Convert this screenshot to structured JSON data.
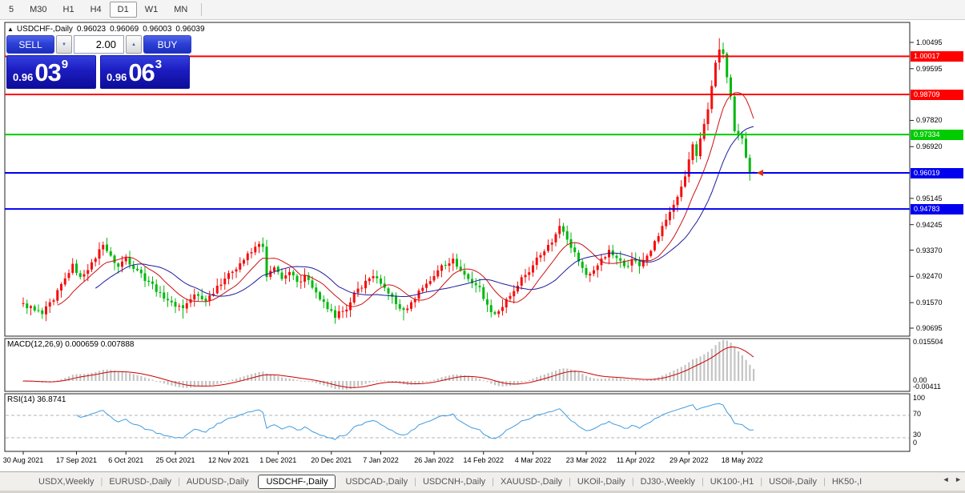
{
  "toolbar": {
    "timeframes": [
      {
        "label": "5",
        "active": false
      },
      {
        "label": "M30",
        "active": false
      },
      {
        "label": "H1",
        "active": false
      },
      {
        "label": "H4",
        "active": false
      },
      {
        "label": "D1",
        "active": true
      },
      {
        "label": "W1",
        "active": false
      },
      {
        "label": "MN",
        "active": false
      }
    ]
  },
  "chart": {
    "collapse_arrow": "▲",
    "symbol": "USDCHF-,Daily",
    "open": "0.96023",
    "high": "0.96069",
    "low": "0.96003",
    "close": "0.96039",
    "trade": {
      "sell_label": "SELL",
      "buy_label": "BUY",
      "volume": "2.00",
      "spin_down": "▼",
      "spin_up": "▲",
      "sell_small": "0.96",
      "sell_big": "03",
      "sell_sup": "9",
      "buy_small": "0.96",
      "buy_big": "06",
      "buy_sup": "3"
    }
  },
  "macd": {
    "label": "MACD(12,26,9) 0.000659 0.007888",
    "axis": [
      "0.015504",
      "0.00",
      "-0.00411"
    ]
  },
  "rsi": {
    "label": "RSI(14) 36.8741",
    "axis": [
      "100",
      "70",
      "30",
      "0"
    ]
  },
  "tabs": {
    "items": [
      {
        "label": "USDX,Weekly",
        "active": false
      },
      {
        "label": "EURUSD-,Daily",
        "active": false
      },
      {
        "label": "AUDUSD-,Daily",
        "active": false
      },
      {
        "label": "USDCHF-,Daily",
        "active": true
      },
      {
        "label": "USDCAD-,Daily",
        "active": false
      },
      {
        "label": "USDCNH-,Daily",
        "active": false
      },
      {
        "label": "XAUUSD-,Daily",
        "active": false
      },
      {
        "label": "UKOil-,Daily",
        "active": false
      },
      {
        "label": "DJ30-,Weekly",
        "active": false
      },
      {
        "label": "UK100-,H1",
        "active": false
      },
      {
        "label": "USOil-,Daily",
        "active": false
      },
      {
        "label": "HK50-,I",
        "active": false
      }
    ],
    "scroll_left": "◄",
    "scroll_right": "►"
  },
  "chart_data": {
    "type": "candlestick",
    "symbol": "USDCHF",
    "timeframe": "Daily",
    "bars": 193,
    "bull_color": "#f60e0e",
    "bear_color": "#00b80e",
    "current_ohlc": {
      "open": 0.96023,
      "high": 0.96069,
      "low": 0.96003,
      "close": 0.96039
    },
    "y_axis_ticks": [
      "1.00495",
      "0.99595",
      "0.97820",
      "0.96920",
      "0.95145",
      "0.94245",
      "0.93370",
      "0.92470",
      "0.91570",
      "0.90695"
    ],
    "horizontal_lines": [
      {
        "price": "1.00017",
        "color": "#ff0000"
      },
      {
        "price": "0.98709",
        "color": "#ff0000"
      },
      {
        "price": "0.97334",
        "color": "#00cc00"
      },
      {
        "price": "0.96019",
        "color": "#0000ee"
      },
      {
        "price": "0.94783",
        "color": "#0000ee"
      }
    ],
    "date_ticks": [
      {
        "label": "30 Aug 2021",
        "idx": 0
      },
      {
        "label": "17 Sep 2021",
        "idx": 14
      },
      {
        "label": "6 Oct 2021",
        "idx": 27
      },
      {
        "label": "25 Oct 2021",
        "idx": 40
      },
      {
        "label": "12 Nov 2021",
        "idx": 54
      },
      {
        "label": "1 Dec 2021",
        "idx": 67
      },
      {
        "label": "20 Dec 2021",
        "idx": 81
      },
      {
        "label": "7 Jan 2022",
        "idx": 94
      },
      {
        "label": "26 Jan 2022",
        "idx": 108
      },
      {
        "label": "14 Feb 2022",
        "idx": 121
      },
      {
        "label": "4 Mar 2022",
        "idx": 134
      },
      {
        "label": "23 Mar 2022",
        "idx": 148
      },
      {
        "label": "11 Apr 2022",
        "idx": 161
      },
      {
        "label": "29 Apr 2022",
        "idx": 175
      },
      {
        "label": "18 May 2022",
        "idx": 189
      }
    ],
    "close_anchors": [
      [
        0,
        0.9155
      ],
      [
        3,
        0.913
      ],
      [
        5,
        0.9118
      ],
      [
        8,
        0.9165
      ],
      [
        11,
        0.924
      ],
      [
        13,
        0.929
      ],
      [
        15,
        0.9245
      ],
      [
        18,
        0.9295
      ],
      [
        21,
        0.9355
      ],
      [
        23,
        0.9318
      ],
      [
        25,
        0.928
      ],
      [
        27,
        0.9312
      ],
      [
        30,
        0.9268
      ],
      [
        33,
        0.9228
      ],
      [
        36,
        0.9192
      ],
      [
        39,
        0.9158
      ],
      [
        42,
        0.9138
      ],
      [
        45,
        0.9185
      ],
      [
        48,
        0.9162
      ],
      [
        51,
        0.9215
      ],
      [
        54,
        0.9258
      ],
      [
        57,
        0.9292
      ],
      [
        60,
        0.933
      ],
      [
        62,
        0.9358
      ],
      [
        63,
        0.9348
      ],
      [
        64,
        0.9245
      ],
      [
        66,
        0.9278
      ],
      [
        68,
        0.9238
      ],
      [
        70,
        0.9262
      ],
      [
        72,
        0.9228
      ],
      [
        74,
        0.9252
      ],
      [
        76,
        0.9208
      ],
      [
        78,
        0.9168
      ],
      [
        80,
        0.9135
      ],
      [
        82,
        0.9105
      ],
      [
        84,
        0.9128
      ],
      [
        86,
        0.9158
      ],
      [
        88,
        0.9205
      ],
      [
        90,
        0.9232
      ],
      [
        92,
        0.9248
      ],
      [
        94,
        0.9222
      ],
      [
        96,
        0.9188
      ],
      [
        98,
        0.9152
      ],
      [
        100,
        0.9132
      ],
      [
        102,
        0.9158
      ],
      [
        104,
        0.9198
      ],
      [
        106,
        0.9222
      ],
      [
        108,
        0.9248
      ],
      [
        110,
        0.9285
      ],
      [
        113,
        0.9308
      ],
      [
        115,
        0.9268
      ],
      [
        117,
        0.9238
      ],
      [
        120,
        0.921
      ],
      [
        122,
        0.915
      ],
      [
        124,
        0.9118
      ],
      [
        126,
        0.9142
      ],
      [
        128,
        0.918
      ],
      [
        130,
        0.9215
      ],
      [
        132,
        0.9252
      ],
      [
        134,
        0.9285
      ],
      [
        136,
        0.932
      ],
      [
        138,
        0.9355
      ],
      [
        140,
        0.9392
      ],
      [
        141,
        0.942
      ],
      [
        142,
        0.94
      ],
      [
        144,
        0.9345
      ],
      [
        146,
        0.9298
      ],
      [
        148,
        0.9252
      ],
      [
        150,
        0.9268
      ],
      [
        152,
        0.9308
      ],
      [
        154,
        0.9338
      ],
      [
        156,
        0.931
      ],
      [
        158,
        0.9282
      ],
      [
        160,
        0.9305
      ],
      [
        162,
        0.9282
      ],
      [
        164,
        0.9318
      ],
      [
        166,
        0.9368
      ],
      [
        168,
        0.942
      ],
      [
        170,
        0.9468
      ],
      [
        172,
        0.952
      ],
      [
        174,
        0.959
      ],
      [
        175,
        0.9648
      ],
      [
        176,
        0.97
      ],
      [
        177,
        0.966
      ],
      [
        178,
        0.972
      ],
      [
        179,
        0.977
      ],
      [
        180,
        0.982
      ],
      [
        181,
        0.99
      ],
      [
        182,
        0.998
      ],
      [
        183,
        1.0025
      ],
      [
        184,
        1.001
      ],
      [
        185,
        0.993
      ],
      [
        186,
        0.9865
      ],
      [
        187,
        0.9745
      ],
      [
        188,
        0.973
      ],
      [
        189,
        0.972
      ],
      [
        190,
        0.9655
      ],
      [
        191,
        0.96
      ],
      [
        192,
        0.96039
      ]
    ],
    "moving_averages": [
      {
        "period": 10,
        "color": "#cc1111"
      },
      {
        "period": 20,
        "color": "#1c1c9e"
      }
    ],
    "indicators": {
      "macd": {
        "fast": 12,
        "slow": 26,
        "signal": 9,
        "value": 0.000659,
        "signal_value": 0.007888,
        "histogram_color": "#c4c4c4",
        "signal_color": "#cc0000"
      },
      "rsi": {
        "period": 14,
        "value": 36.8741,
        "levels": [
          70,
          30
        ],
        "color": "#3e9bdf"
      }
    },
    "trade_marker": {
      "price": 0.96019,
      "color": "#e03000"
    }
  }
}
